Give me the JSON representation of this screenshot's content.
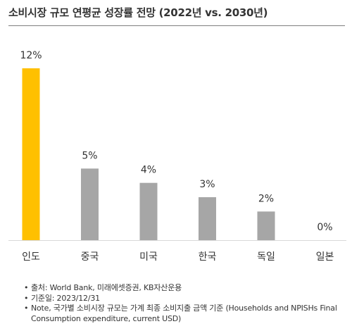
{
  "title": "소비시장 규모 연평균 성장률 전망 (2022년 vs. 2030년)",
  "chart_data": {
    "type": "bar",
    "title": "",
    "xlabel": "",
    "ylabel": "",
    "categories": [
      "인도",
      "중국",
      "미국",
      "한국",
      "독일",
      "일본"
    ],
    "values": [
      12,
      5,
      4,
      3,
      2,
      0
    ],
    "data_labels": [
      "12%",
      "5%",
      "4%",
      "3%",
      "2%",
      "0%"
    ],
    "unit": "%",
    "ylim": [
      0,
      12
    ],
    "grid": false,
    "legend": "none",
    "colors": {
      "highlight": "#FFC000",
      "default": "#A6A6A6",
      "axis": "#D9D9D9",
      "label": "#333333"
    },
    "highlight_index": 0
  },
  "notes": [
    "출처: World Bank, 미래에셋증권, KB자산운용",
    "기준일: 2023/12/31",
    "Note, 국가별 소비시장 규모는 가계 최종 소비지출 금액 기준 (Households and NPISHs Final Consumption expenditure, current USD)"
  ]
}
